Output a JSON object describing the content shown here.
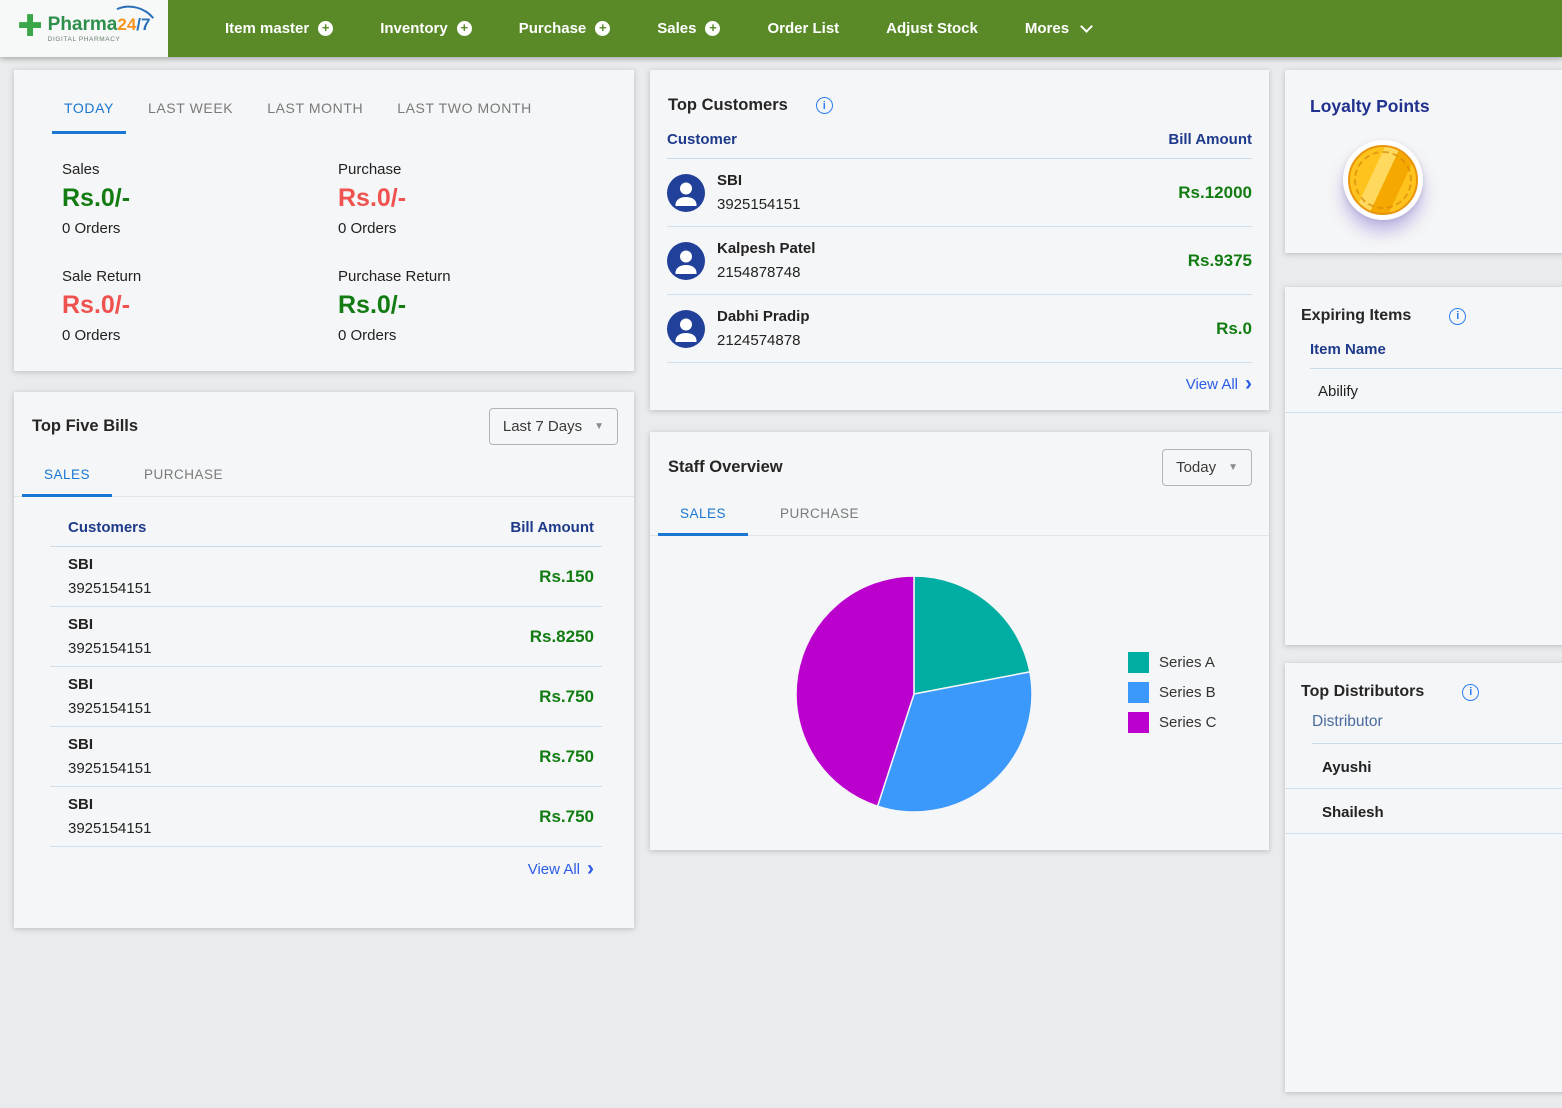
{
  "icons": {
    "plus_icon": "+",
    "caret_down": "▼",
    "chevron_right": "›",
    "info_icon": "i"
  },
  "colors": {
    "nav_green": "#5a8a28",
    "money_green": "#127c12",
    "money_red": "#ef5350",
    "accent_blue": "#1976d2",
    "link_blue": "#2b5ce6",
    "header_navy": "#1e3a8a",
    "avatar_navy": "#21409a"
  },
  "nav": {
    "logo": {
      "brand": "Pharma",
      "badge_24": "24",
      "badge_7": "/7",
      "tagline": "DIGITAL PHARMACY"
    },
    "items": [
      {
        "label": "Item master"
      },
      {
        "label": "Inventory"
      },
      {
        "label": "Purchase"
      },
      {
        "label": "Sales"
      },
      {
        "label": "Order List"
      },
      {
        "label": "Adjust Stock"
      },
      {
        "label": "Mores"
      }
    ]
  },
  "summary": {
    "tabs": [
      "TODAY",
      "LAST WEEK",
      "LAST MONTH",
      "LAST TWO MONTH"
    ],
    "active_tab": "TODAY",
    "metrics": [
      {
        "label": "Sales",
        "value": "Rs.0/-",
        "orders": "0 Orders",
        "value_color": "#127c12"
      },
      {
        "label": "Purchase",
        "value": "Rs.0/-",
        "orders": "0 Orders",
        "value_color": "#ef5350"
      },
      {
        "label": "Sale Return",
        "value": "Rs.0/-",
        "orders": "0 Orders",
        "value_color": "#ef5350"
      },
      {
        "label": "Purchase Return",
        "value": "Rs.0/-",
        "orders": "0 Orders",
        "value_color": "#127c12"
      }
    ]
  },
  "top_five_bills": {
    "title": "Top Five Bills",
    "range_selected": "Last 7 Days",
    "tabs": [
      "SALES",
      "PURCHASE"
    ],
    "active_tab": "SALES",
    "columns": [
      "Customers",
      "Bill Amount"
    ],
    "rows": [
      {
        "name": "SBI",
        "phone": "3925154151",
        "amount": "Rs.150"
      },
      {
        "name": "SBI",
        "phone": "3925154151",
        "amount": "Rs.8250"
      },
      {
        "name": "SBI",
        "phone": "3925154151",
        "amount": "Rs.750"
      },
      {
        "name": "SBI",
        "phone": "3925154151",
        "amount": "Rs.750"
      },
      {
        "name": "SBI",
        "phone": "3925154151",
        "amount": "Rs.750"
      }
    ],
    "view_all": "View All"
  },
  "top_customers": {
    "title": "Top Customers",
    "columns": [
      "Customer",
      "Bill Amount"
    ],
    "rows": [
      {
        "name": "SBI",
        "phone": "3925154151",
        "amount": "Rs.12000"
      },
      {
        "name": "Kalpesh Patel",
        "phone": "2154878748",
        "amount": "Rs.9375"
      },
      {
        "name": "Dabhi Pradip",
        "phone": "2124574878",
        "amount": "Rs.0"
      }
    ],
    "view_all": "View All"
  },
  "staff_overview": {
    "title": "Staff Overview",
    "range_selected": "Today",
    "tabs": [
      "SALES",
      "PURCHASE"
    ],
    "active_tab": "SALES"
  },
  "chart_data": {
    "type": "pie",
    "title": "Staff Overview - SALES - Today",
    "labels": [
      "Series A",
      "Series B",
      "Series C"
    ],
    "values": [
      22,
      33,
      45
    ],
    "unit": "percent",
    "colors": [
      "#00ada2",
      "#3b99fc",
      "#bb00ce"
    ],
    "start_angle_deg": 0,
    "legend_position": "right"
  },
  "loyalty_points": {
    "title": "Loyalty Points"
  },
  "expiring_items": {
    "title": "Expiring Items",
    "columns": [
      "Item Name"
    ],
    "rows": [
      "Abilify"
    ]
  },
  "top_distributors": {
    "title": "Top Distributors",
    "columns": [
      "Distributor"
    ],
    "rows": [
      "Ayushi",
      "Shailesh"
    ]
  }
}
